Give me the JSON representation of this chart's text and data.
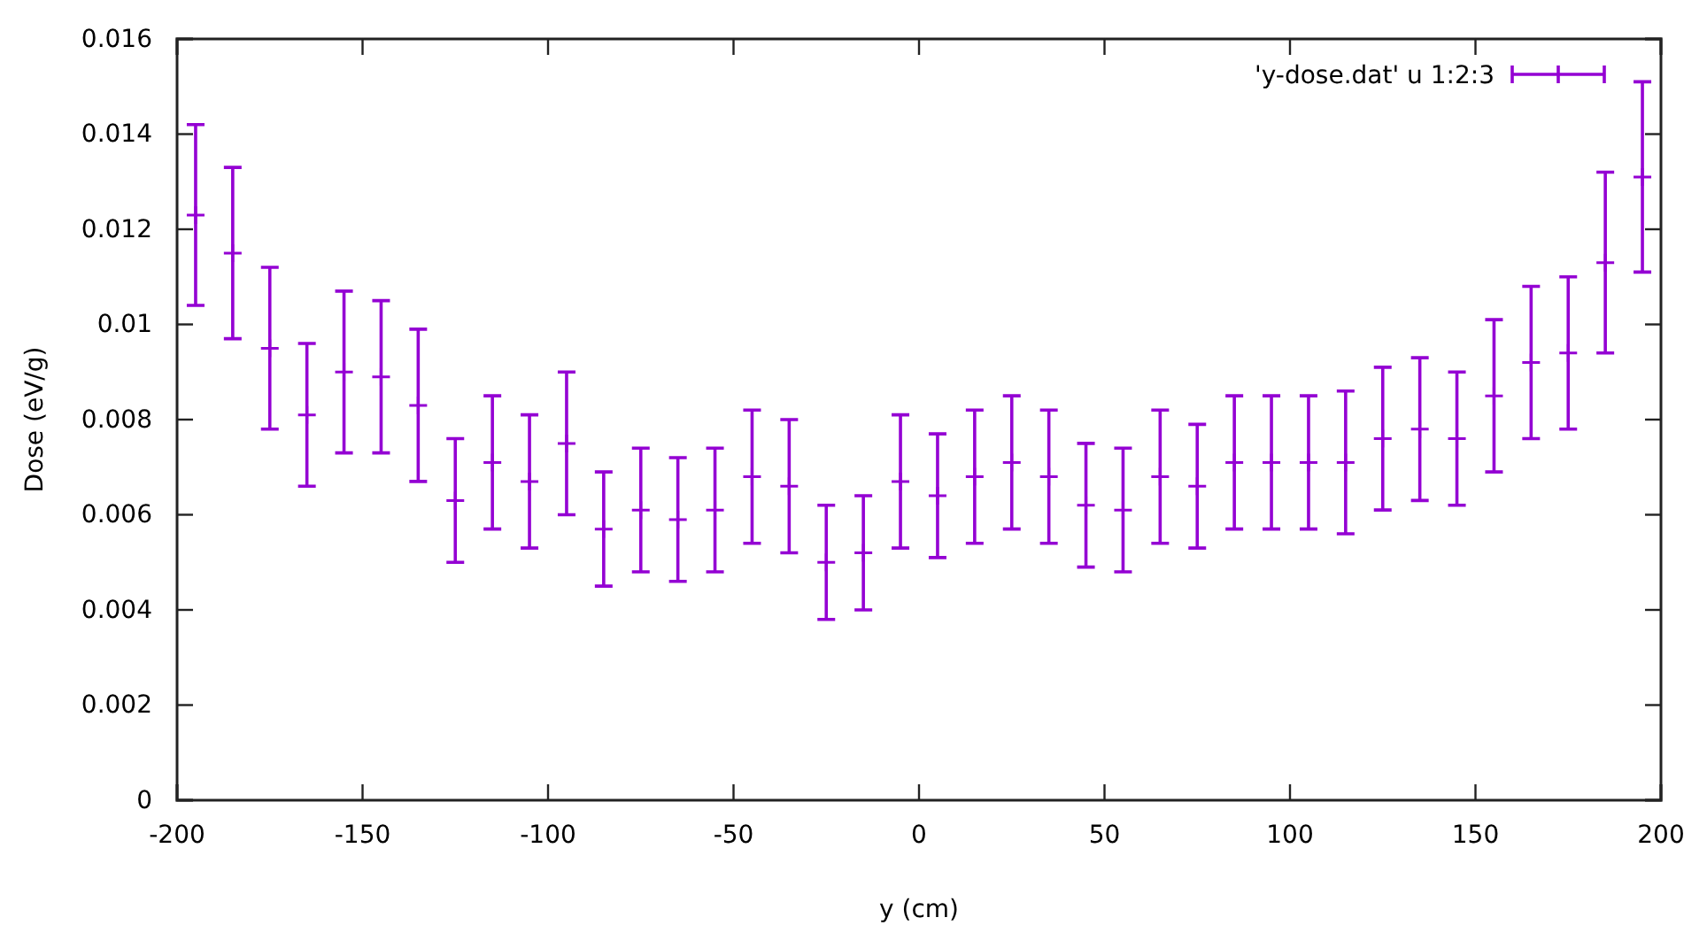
{
  "chart_data": {
    "type": "scatter",
    "xlabel": "y (cm)",
    "ylabel": "Dose (eV/g)",
    "legend": "top right",
    "marker": "cross",
    "grid": false,
    "xlim": [
      -200,
      200
    ],
    "xticks": [
      -200,
      -150,
      -100,
      -50,
      0,
      50,
      100,
      150,
      200
    ],
    "ylim": [
      0,
      0.016
    ],
    "yticks": [
      0,
      0.002,
      0.004,
      0.006,
      0.008,
      0.01,
      0.012,
      0.014,
      0.016
    ],
    "series": [
      {
        "name": "'y-dose.dat' u 1:2:3",
        "color": "#9400d3",
        "x": [
          -195,
          -185,
          -175,
          -165,
          -155,
          -145,
          -135,
          -125,
          -115,
          -105,
          -95,
          -85,
          -75,
          -65,
          -55,
          -45,
          -35,
          -25,
          -15,
          -5,
          5,
          15,
          25,
          35,
          45,
          55,
          65,
          75,
          85,
          95,
          105,
          115,
          125,
          135,
          145,
          155,
          165,
          175,
          185,
          195
        ],
        "values": [
          0.0123,
          0.0115,
          0.0095,
          0.0081,
          0.009,
          0.0089,
          0.0083,
          0.0063,
          0.0071,
          0.0067,
          0.0075,
          0.0057,
          0.0061,
          0.0059,
          0.0061,
          0.0068,
          0.0066,
          0.005,
          0.0052,
          0.0067,
          0.0064,
          0.0068,
          0.0071,
          0.0068,
          0.0062,
          0.0061,
          0.0068,
          0.0066,
          0.0071,
          0.0071,
          0.0071,
          0.0071,
          0.0076,
          0.0078,
          0.0076,
          0.0085,
          0.0092,
          0.0094,
          0.0113,
          0.0131
        ],
        "errors": [
          0.0019,
          0.0018,
          0.0017,
          0.0015,
          0.0017,
          0.0016,
          0.0016,
          0.0013,
          0.0014,
          0.0014,
          0.0015,
          0.0012,
          0.0013,
          0.0013,
          0.0013,
          0.0014,
          0.0014,
          0.0012,
          0.0012,
          0.0014,
          0.0013,
          0.0014,
          0.0014,
          0.0014,
          0.0013,
          0.0013,
          0.0014,
          0.0013,
          0.0014,
          0.0014,
          0.0014,
          0.0015,
          0.0015,
          0.0015,
          0.0014,
          0.0016,
          0.0016,
          0.0016,
          0.0019,
          0.002
        ]
      }
    ]
  }
}
